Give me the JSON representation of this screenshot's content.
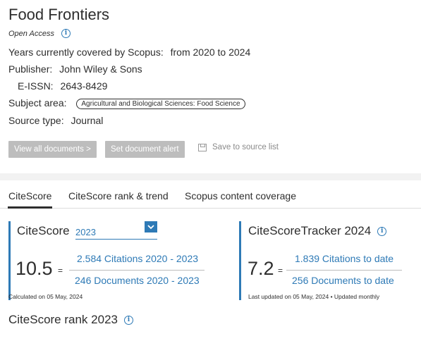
{
  "source": {
    "title": "Food Frontiers",
    "open_access": "Open Access",
    "years_label": "Years currently covered by Scopus:",
    "years_value": "from 2020 to 2024",
    "publisher_label": "Publisher:",
    "publisher_value": "John Wiley & Sons",
    "eissn_label": "E-ISSN:",
    "eissn_value": "2643-8429",
    "subject_label": "Subject area:",
    "subject_value": "Agricultural and Biological Sciences: Food Science",
    "source_type_label": "Source type:",
    "source_type_value": "Journal"
  },
  "actions": {
    "view_all": "View all documents >",
    "set_alert": "Set document alert",
    "save_list": "Save to source list"
  },
  "tabs": [
    {
      "label": "CiteScore"
    },
    {
      "label": "CiteScore rank & trend"
    },
    {
      "label": "Scopus content coverage"
    }
  ],
  "citescore": {
    "label": "CiteScore",
    "year": "2023",
    "value": "10.5",
    "equals": "=",
    "citations": "2.584 Citations 2020 - 2023",
    "documents": "246 Documents 2020 - 2023",
    "calculated": "Calculated on 05 May, 2024"
  },
  "tracker": {
    "label": "CiteScoreTracker 2024",
    "value": "7.2",
    "equals": "=",
    "citations": "1.839 Citations to date",
    "documents": "256 Documents to date",
    "updated": "Last updated on 05 May, 2024 • Updated monthly"
  },
  "rank": {
    "label": "CiteScore rank 2023"
  },
  "colors": {
    "accent": "#2e7ab6",
    "text": "#2e2e2e",
    "button_disabled": "#bdbdbd"
  }
}
